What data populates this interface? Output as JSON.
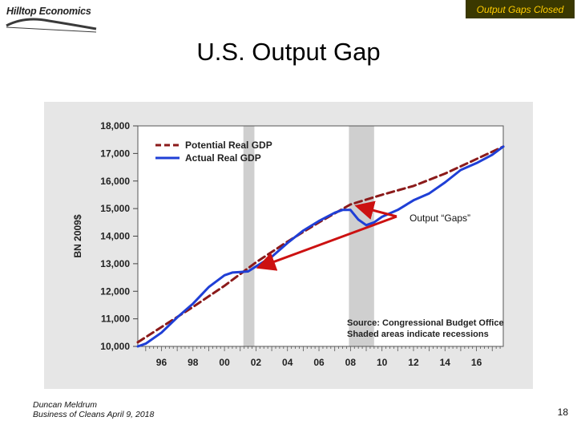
{
  "header": {
    "logo_text": "Hilltop Economics",
    "badge": "Output Gaps Closed"
  },
  "slide": {
    "title": "U.S. Output Gap",
    "page_number": "18"
  },
  "footer": {
    "author": "Duncan Meldrum",
    "event": "Business of Cleans April 9, 2018"
  },
  "colors": {
    "potential": "#8b1a1a",
    "actual": "#1f3fd6",
    "recession": "#cfcfcf",
    "annotation_arrow": "#cc1111",
    "badge_bg": "#3a3800",
    "badge_text": "#ffcc00"
  },
  "chart_data": {
    "type": "line",
    "ylabel": "BN 2009$",
    "xlim": [
      1994.5,
      2017.7
    ],
    "ylim": [
      10000,
      18000
    ],
    "y_ticks": [
      10000,
      11000,
      12000,
      13000,
      14000,
      15000,
      16000,
      17000,
      18000
    ],
    "y_tick_labels": [
      "10,000",
      "11,000",
      "12,000",
      "13,000",
      "14,000",
      "15,000",
      "16,000",
      "17,000",
      "18,000"
    ],
    "x_ticks": [
      1996,
      1998,
      2000,
      2002,
      2004,
      2006,
      2008,
      2010,
      2012,
      2014,
      2016
    ],
    "x_tick_labels": [
      "96",
      "98",
      "00",
      "02",
      "04",
      "06",
      "08",
      "10",
      "12",
      "14",
      "16"
    ],
    "grid": false,
    "legend_position": "top-left",
    "recessions": [
      [
        2001.2,
        2001.9
      ],
      [
        2007.9,
        2009.5
      ]
    ],
    "series": [
      {
        "name": "Potential Real GDP",
        "style": "dashed",
        "x": [
          1994.5,
          1996,
          1998,
          2000,
          2002,
          2004,
          2006,
          2008,
          2010,
          2012,
          2014,
          2016,
          2017.7
        ],
        "values": [
          10150,
          10700,
          11430,
          12200,
          13050,
          13800,
          14500,
          15150,
          15500,
          15820,
          16270,
          16800,
          17250
        ]
      },
      {
        "name": "Actual Real GDP",
        "style": "solid",
        "x": [
          1994.5,
          1995,
          1996,
          1997,
          1998,
          1999,
          2000,
          2000.5,
          2001,
          2001.5,
          2002,
          2003,
          2004,
          2005,
          2006,
          2007,
          2007.5,
          2008,
          2008.5,
          2009,
          2009.5,
          2010,
          2011,
          2012,
          2013,
          2014,
          2015,
          2016,
          2017,
          2017.7
        ],
        "values": [
          10000,
          10100,
          10500,
          11050,
          11550,
          12150,
          12580,
          12680,
          12700,
          12720,
          12900,
          13250,
          13750,
          14200,
          14550,
          14850,
          14950,
          14950,
          14600,
          14400,
          14500,
          14700,
          14950,
          15300,
          15550,
          15950,
          16400,
          16650,
          16950,
          17250
        ]
      }
    ],
    "annotations": {
      "source": "Source: Congressional Budget Office",
      "shading": "Shaded areas indicate recessions",
      "gaps_label": "Output “Gaps”"
    }
  }
}
